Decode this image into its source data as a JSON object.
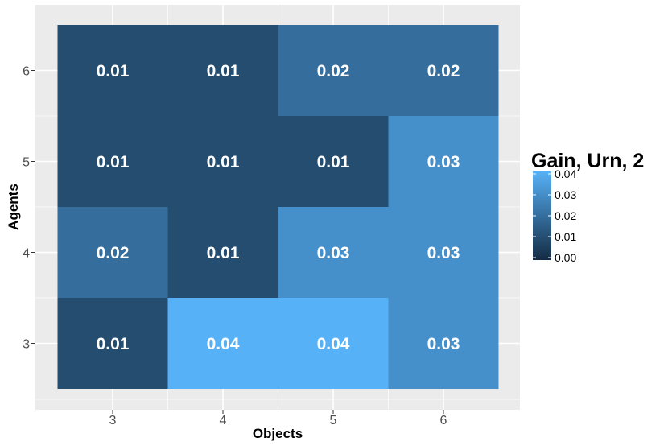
{
  "chart_data": {
    "type": "heatmap",
    "title": "",
    "xlabel": "Objects",
    "ylabel": "Agents",
    "x_categories": [
      "3",
      "4",
      "5",
      "6"
    ],
    "y_categories": [
      "3",
      "4",
      "5",
      "6"
    ],
    "cells": [
      {
        "x": "3",
        "y": "6",
        "value": 0.01,
        "label": "0.01"
      },
      {
        "x": "4",
        "y": "6",
        "value": 0.01,
        "label": "0.01"
      },
      {
        "x": "5",
        "y": "6",
        "value": 0.02,
        "label": "0.02"
      },
      {
        "x": "6",
        "y": "6",
        "value": 0.02,
        "label": "0.02"
      },
      {
        "x": "3",
        "y": "5",
        "value": 0.01,
        "label": "0.01"
      },
      {
        "x": "4",
        "y": "5",
        "value": 0.01,
        "label": "0.01"
      },
      {
        "x": "5",
        "y": "5",
        "value": 0.01,
        "label": "0.01"
      },
      {
        "x": "6",
        "y": "5",
        "value": 0.03,
        "label": "0.03"
      },
      {
        "x": "3",
        "y": "4",
        "value": 0.02,
        "label": "0.02"
      },
      {
        "x": "4",
        "y": "4",
        "value": 0.01,
        "label": "0.01"
      },
      {
        "x": "5",
        "y": "4",
        "value": 0.03,
        "label": "0.03"
      },
      {
        "x": "6",
        "y": "4",
        "value": 0.03,
        "label": "0.03"
      },
      {
        "x": "3",
        "y": "3",
        "value": 0.01,
        "label": "0.01"
      },
      {
        "x": "4",
        "y": "3",
        "value": 0.04,
        "label": "0.04"
      },
      {
        "x": "5",
        "y": "3",
        "value": 0.04,
        "label": "0.04"
      },
      {
        "x": "6",
        "y": "3",
        "value": 0.03,
        "label": "0.03"
      }
    ],
    "legend": {
      "title": "Gain, Urn, 2",
      "ticks": [
        "0.00",
        "0.01",
        "0.02",
        "0.03",
        "0.04"
      ],
      "range": [
        0.0,
        0.04
      ],
      "low_color": "#132B43",
      "high_color": "#56B1F7"
    },
    "panel_background": "#EBEBEB",
    "grid": true
  }
}
